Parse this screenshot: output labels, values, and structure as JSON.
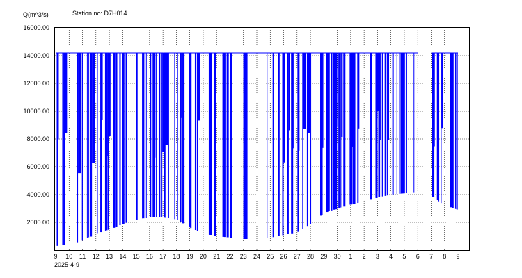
{
  "header": {
    "ylabel": "Q(m^3/s)",
    "station": "Station no: D7H014"
  },
  "colors": {
    "series": "#0000ff",
    "grid": "#000000",
    "background": "#ffffff"
  },
  "chart_data": {
    "type": "bar",
    "ylabel": "Q(m^3/s)",
    "title": "Station no: D7H014",
    "ylim": [
      0,
      16000
    ],
    "yticks": [
      "2000.00",
      "4000.00",
      "6000.00",
      "8000.00",
      "10000.00",
      "12000.00",
      "14000.00",
      "16000.00"
    ],
    "ytick_values": [
      2000,
      4000,
      6000,
      8000,
      10000,
      12000,
      14000,
      16000
    ],
    "xticks": [
      "9",
      "10",
      "11",
      "12",
      "13",
      "14",
      "15",
      "16",
      "17",
      "18",
      "19",
      "20",
      "21",
      "22",
      "23",
      "24",
      "25",
      "26",
      "27",
      "28",
      "29",
      "30",
      "1",
      "2",
      "3",
      "4",
      "5",
      "6",
      "7",
      "8",
      "9"
    ],
    "x_date_label": "2025-4-9",
    "grid": true,
    "cap_value": 14200,
    "series": [
      {
        "values_note": "approximate daily envelope of sampled discharge",
        "base_by_day": [
          300,
          400,
          700,
          1200,
          1500,
          1900,
          2200,
          2400,
          2400,
          2200,
          1600,
          1200,
          1000,
          900,
          800,
          800,
          900,
          1100,
          1300,
          1900,
          2700,
          3000,
          3300,
          3500,
          3800,
          4000,
          4100,
          4200,
          3900,
          3200,
          2900
        ],
        "high_by_day": [
          14200,
          14200,
          14200,
          14200,
          14200,
          14200,
          14200,
          14200,
          14200,
          14200,
          14200,
          14200,
          14200,
          14200,
          14200,
          14200,
          14200,
          14200,
          14200,
          14200,
          14200,
          14200,
          14200,
          14200,
          14200,
          14200,
          14200,
          14200,
          14200,
          14200,
          14200
        ],
        "density_by_day": [
          4,
          3,
          3,
          6,
          5,
          2,
          4,
          5,
          5,
          5,
          3,
          4,
          5,
          2,
          3,
          1,
          3,
          3,
          4,
          2,
          8,
          6,
          6,
          3,
          9,
          7,
          2,
          0,
          5,
          5,
          0
        ]
      }
    ]
  }
}
